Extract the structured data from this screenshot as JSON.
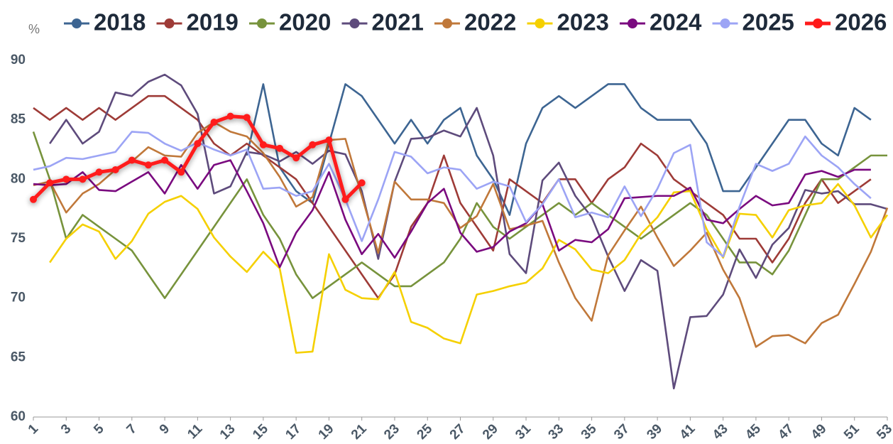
{
  "chart_data": {
    "type": "line",
    "yunit": "%",
    "x": [
      1,
      2,
      3,
      4,
      5,
      6,
      7,
      8,
      9,
      10,
      11,
      12,
      13,
      14,
      15,
      16,
      17,
      18,
      19,
      20,
      21,
      22,
      23,
      24,
      25,
      26,
      27,
      28,
      29,
      30,
      31,
      32,
      33,
      34,
      35,
      36,
      37,
      38,
      39,
      40,
      41,
      42,
      43,
      44,
      45,
      46,
      47,
      48,
      49,
      50,
      51,
      52,
      53
    ],
    "xlim": [
      1,
      53
    ],
    "xticks": [
      1,
      3,
      5,
      7,
      9,
      11,
      13,
      15,
      17,
      19,
      21,
      23,
      25,
      27,
      29,
      31,
      33,
      35,
      37,
      39,
      41,
      43,
      45,
      47,
      49,
      51,
      53
    ],
    "ylim": [
      60,
      90
    ],
    "yticks": [
      60,
      65,
      70,
      75,
      80,
      85,
      90
    ],
    "grid": false,
    "series": [
      {
        "name": "2018",
        "color": "#3d6592",
        "values": [
          null,
          null,
          null,
          null,
          null,
          null,
          null,
          null,
          null,
          null,
          null,
          null,
          null,
          82,
          88,
          81,
          79,
          78,
          83,
          88,
          87,
          85,
          83,
          85,
          83,
          85,
          86,
          82,
          80,
          77,
          83,
          86,
          87,
          86,
          87,
          88,
          88,
          86,
          85,
          85,
          85,
          83,
          79,
          79,
          81,
          83,
          85,
          85,
          83,
          82,
          86,
          85,
          null
        ]
      },
      {
        "name": "2019",
        "color": "#9e3b37",
        "values": [
          86,
          85,
          86,
          85,
          86,
          85,
          86,
          87,
          87,
          86,
          85,
          83,
          82,
          83,
          82,
          81,
          80,
          78,
          76,
          74,
          72,
          70,
          72,
          76,
          78,
          82,
          78,
          76,
          74,
          80,
          79,
          78,
          80,
          80,
          78,
          80,
          81,
          83,
          82,
          80,
          79,
          78,
          77,
          75,
          75,
          73,
          75,
          78,
          80,
          78,
          79,
          80,
          null
        ]
      },
      {
        "name": "2020",
        "color": "#77933c",
        "values": [
          84,
          80,
          75,
          77,
          76,
          75,
          74,
          72,
          70,
          72,
          74,
          76,
          78,
          80,
          77,
          75,
          72,
          70,
          71,
          72,
          73,
          72,
          71,
          71,
          72,
          73,
          75,
          78,
          76,
          75,
          76,
          77,
          78,
          77,
          78,
          77,
          76,
          75,
          76,
          77,
          78,
          77,
          75,
          73,
          73,
          72,
          74,
          77,
          80,
          80,
          81,
          82,
          82
        ]
      },
      {
        "name": "2021",
        "color": "#5e4b7c",
        "values": [
          null,
          83,
          85,
          83,
          84,
          87.3,
          87,
          88.2,
          88.8,
          87.9,
          85.5,
          78.8,
          79.4,
          82.3,
          82.1,
          81.5,
          82.3,
          81.3,
          82.4,
          82.1,
          79,
          73.3,
          79.8,
          83.4,
          83.5,
          84.1,
          83.6,
          86,
          82,
          73.7,
          72.1,
          79.9,
          81.4,
          78.6,
          76.8,
          73.5,
          70.6,
          73.2,
          72.3,
          62.4,
          68.4,
          68.5,
          70.3,
          74.1,
          71.7,
          74.5,
          75.9,
          79.1,
          78.8,
          79,
          77.9,
          77.9,
          77.5
        ]
      },
      {
        "name": "2022",
        "color": "#c0783a",
        "values": [
          79.5,
          79.8,
          77.2,
          78.8,
          79.6,
          80.8,
          81.5,
          82.7,
          82,
          81.9,
          83.9,
          84.8,
          84,
          83.6,
          82.2,
          80.2,
          77.7,
          78.5,
          83.3,
          83.4,
          78.6,
          73.8,
          79.8,
          78.3,
          78.3,
          78,
          75.9,
          76.9,
          79.6,
          75.8,
          76.1,
          76.5,
          73,
          70,
          68.1,
          73.6,
          75.7,
          77.7,
          75.1,
          72.7,
          74,
          75.5,
          72.4,
          70,
          65.9,
          66.8,
          66.9,
          66.2,
          67.9,
          68.6,
          71.2,
          73.9,
          77.6
        ]
      },
      {
        "name": "2023",
        "color": "#f5d000",
        "values": [
          null,
          73,
          75,
          76.2,
          75.6,
          73.3,
          74.8,
          77.1,
          78.1,
          78.6,
          77.5,
          75.1,
          73.5,
          72.2,
          73.9,
          72.5,
          65.4,
          65.5,
          73.7,
          70.7,
          70,
          69.9,
          72.2,
          68,
          67.5,
          66.6,
          66.2,
          70.3,
          70.6,
          71,
          71.3,
          72.5,
          74.9,
          74.1,
          72.4,
          72.1,
          73.2,
          75.4,
          76.8,
          78.9,
          79,
          75.8,
          73.4,
          77.1,
          77,
          75.1,
          77.4,
          77.8,
          78,
          79.6,
          77.8,
          75.1,
          77
        ]
      },
      {
        "name": "2024",
        "color": "#7a0a7f",
        "values": [
          79.6,
          79.5,
          79.6,
          80.6,
          79.1,
          79,
          79.8,
          80.6,
          78.8,
          81.2,
          79.2,
          81.2,
          81.6,
          79,
          76.3,
          72.6,
          75.5,
          77.4,
          80.6,
          76.6,
          73.7,
          75.4,
          73.4,
          75.6,
          78,
          79.2,
          75.5,
          73.9,
          74.3,
          75.6,
          76.3,
          77.9,
          74,
          74.9,
          74.7,
          75.8,
          78.4,
          78.5,
          78.6,
          78.6,
          79.3,
          76.6,
          76.3,
          77.5,
          78.6,
          77.8,
          78,
          80.4,
          80.7,
          80.2,
          80.8,
          80.8,
          null
        ]
      },
      {
        "name": "2025",
        "color": "#9ca4f5",
        "values": [
          80.8,
          81.1,
          81.8,
          81.7,
          82,
          82.3,
          84,
          83.9,
          83,
          82.4,
          83.1,
          82.5,
          82,
          82.5,
          79.2,
          79.3,
          78.6,
          79,
          81.3,
          78.3,
          74.8,
          78.3,
          82.3,
          81.9,
          80.5,
          81,
          80.8,
          79.2,
          79.8,
          79.4,
          76.4,
          77.9,
          80,
          76.8,
          77.2,
          76.8,
          79.4,
          76.9,
          79.2,
          82.2,
          82.9,
          74.7,
          73.5,
          77.7,
          81.3,
          80.7,
          81.3,
          83.6,
          82,
          81,
          79.6,
          78.4,
          null
        ]
      },
      {
        "name": "2026",
        "color": "#ff1a1a",
        "values": [
          78.3,
          79.7,
          80,
          80,
          80.6,
          80.8,
          81.6,
          81.2,
          81.6,
          80.6,
          83,
          84.8,
          85.3,
          85.2,
          82.9,
          82.6,
          81.8,
          82.9,
          83.3,
          78.3,
          79.7,
          null,
          null,
          null,
          null,
          null,
          null,
          null,
          null,
          null,
          null,
          null,
          null,
          null,
          null,
          null,
          null,
          null,
          null,
          null,
          null,
          null,
          null,
          null,
          null,
          null,
          null,
          null,
          null,
          null,
          null,
          null,
          null
        ]
      }
    ]
  }
}
